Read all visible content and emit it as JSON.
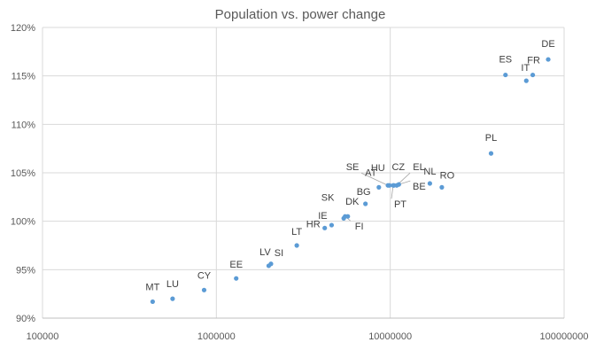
{
  "chart_data": {
    "type": "scatter",
    "title": "Population vs. power change",
    "xlabel": "",
    "ylabel": "",
    "x_scale": "log",
    "xlim": [
      100000,
      100000000
    ],
    "ylim": [
      90,
      120
    ],
    "x_ticks": [
      100000,
      1000000,
      10000000,
      100000000
    ],
    "x_tick_labels": [
      "100000",
      "1000000",
      "10000000",
      "100000000"
    ],
    "y_ticks": [
      90,
      95,
      100,
      105,
      110,
      115,
      120
    ],
    "y_tick_labels": [
      "90%",
      "95%",
      "100%",
      "105%",
      "110%",
      "115%",
      "120%"
    ],
    "grid": true,
    "legend": "none",
    "marker_color": "#5b9bd5",
    "points": [
      {
        "label": "MT",
        "x": 430000,
        "y": 91.7
      },
      {
        "label": "LU",
        "x": 560000,
        "y": 92.0
      },
      {
        "label": "CY",
        "x": 850000,
        "y": 92.9
      },
      {
        "label": "EE",
        "x": 1300000,
        "y": 94.1
      },
      {
        "label": "LV",
        "x": 2000000,
        "y": 95.4
      },
      {
        "label": "SI",
        "x": 2060000,
        "y": 95.6
      },
      {
        "label": "LT",
        "x": 2900000,
        "y": 97.5
      },
      {
        "label": "HR",
        "x": 4200000,
        "y": 99.3
      },
      {
        "label": "IE",
        "x": 4600000,
        "y": 99.6
      },
      {
        "label": "SK",
        "x": 5400000,
        "y": 100.3
      },
      {
        "label": "FI",
        "x": 5500000,
        "y": 100.5
      },
      {
        "label": "DK",
        "x": 5700000,
        "y": 100.5
      },
      {
        "label": "BG",
        "x": 7200000,
        "y": 101.8
      },
      {
        "label": "AT",
        "x": 8600000,
        "y": 103.5
      },
      {
        "label": "SE",
        "x": 9700000,
        "y": 103.7
      },
      {
        "label": "HU",
        "x": 9900000,
        "y": 103.7
      },
      {
        "label": "PT",
        "x": 10400000,
        "y": 103.7
      },
      {
        "label": "CZ",
        "x": 10500000,
        "y": 103.7
      },
      {
        "label": "EL",
        "x": 10900000,
        "y": 103.7
      },
      {
        "label": "BE",
        "x": 11200000,
        "y": 103.8
      },
      {
        "label": "NL",
        "x": 16900000,
        "y": 103.9
      },
      {
        "label": "RO",
        "x": 19800000,
        "y": 103.5
      },
      {
        "label": "PL",
        "x": 38000000,
        "y": 107.0
      },
      {
        "label": "ES",
        "x": 46000000,
        "y": 115.1
      },
      {
        "label": "IT",
        "x": 60600000,
        "y": 114.5
      },
      {
        "label": "FR",
        "x": 66000000,
        "y": 115.1
      },
      {
        "label": "DE",
        "x": 81000000,
        "y": 116.7
      }
    ]
  }
}
